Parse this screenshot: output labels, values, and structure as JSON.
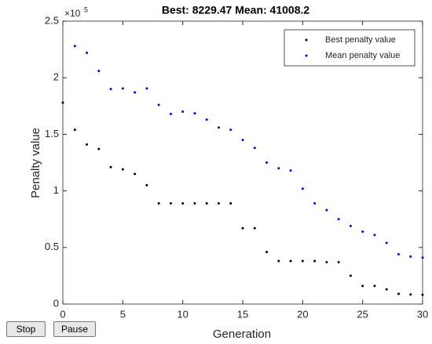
{
  "chart_data": {
    "type": "scatter",
    "title": "Best: 8229.47 Mean: 41008.2",
    "xlabel": "Generation",
    "ylabel": "Penalty value",
    "y_exponent": {
      "base": "×10",
      "power": "5"
    },
    "x": [
      0,
      1,
      2,
      3,
      4,
      5,
      6,
      7,
      8,
      9,
      10,
      11,
      12,
      13,
      14,
      15,
      16,
      17,
      18,
      19,
      20,
      21,
      22,
      23,
      24,
      25,
      26,
      27,
      28,
      29,
      30
    ],
    "series": [
      {
        "name": "Best penalty value",
        "color": "#000000",
        "values": [
          178000,
          154000,
          141000,
          137000,
          121000,
          119000,
          115000,
          105000,
          89000,
          89000,
          89000,
          89000,
          89000,
          89000,
          89000,
          67000,
          67000,
          46000,
          38000,
          38000,
          38000,
          38000,
          37000,
          37000,
          25000,
          16000,
          16000,
          13000,
          9000,
          8500,
          8229.47
        ]
      },
      {
        "name": "Mean penalty value",
        "color": "#0000ff",
        "values": [
          null,
          228000,
          222000,
          206000,
          190000,
          190500,
          187000,
          190500,
          176000,
          168000,
          170000,
          168500,
          163000,
          156000,
          154000,
          145000,
          138000,
          125000,
          120000,
          118000,
          102000,
          89000,
          83000,
          75000,
          69000,
          64000,
          61000,
          54000,
          44000,
          42000,
          41008.2
        ]
      }
    ],
    "xlim": [
      0,
      30
    ],
    "xticks": [
      0,
      5,
      10,
      15,
      20,
      25,
      30
    ],
    "ylim": [
      0,
      250000
    ],
    "yticks": [
      {
        "value": 0,
        "label": "0"
      },
      {
        "value": 50000,
        "label": "0.5"
      },
      {
        "value": 100000,
        "label": "1"
      },
      {
        "value": 150000,
        "label": "1.5"
      },
      {
        "value": 200000,
        "label": "2"
      },
      {
        "value": 250000,
        "label": "2.5"
      }
    ],
    "legend": "northeast"
  },
  "buttons": [
    "Stop",
    "Pause"
  ]
}
